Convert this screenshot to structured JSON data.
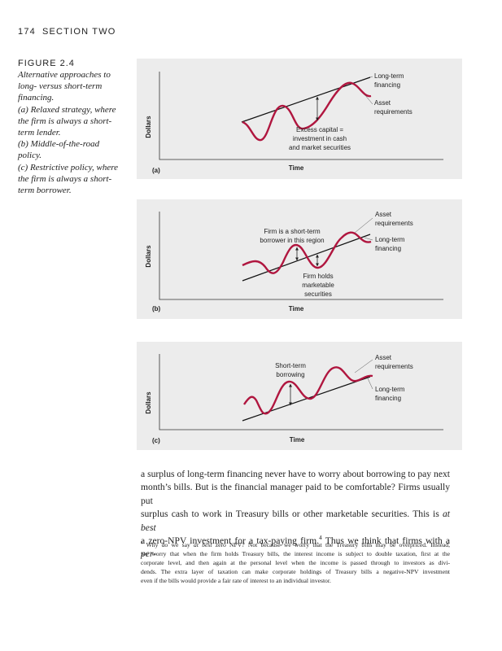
{
  "header": {
    "page_number": "174",
    "section": "SECTION TWO"
  },
  "figure": {
    "label": "FIGURE 2.4",
    "caption_lines": [
      "Alternative approaches to",
      "long- versus short-term",
      "financing.",
      "(a) Relaxed strategy, where",
      "the firm is always a short-",
      "term lender.",
      "(b) Middle-of-the-road",
      "policy.",
      "(c) Restrictive policy, where",
      "the firm is always a short-",
      "term borrower."
    ],
    "panels": [
      {
        "panel_label": "(a)",
        "y_axis_label": "Dollars",
        "x_axis_label": "Time",
        "long_term_label": [
          "Long-term",
          "financing"
        ],
        "asset_label": [
          "Asset",
          "requirements"
        ],
        "notes": [
          [
            "Excess capital =",
            "investment in cash",
            "and market securities"
          ]
        ]
      },
      {
        "panel_label": "(b)",
        "y_axis_label": "Dollars",
        "x_axis_label": "Time",
        "long_term_label": [
          "Long-term",
          "financing"
        ],
        "asset_label": [
          "Asset",
          "requirements"
        ],
        "notes": [
          [
            "Firm is a short-term",
            "borrower in this region"
          ],
          [
            "Firm holds",
            "marketable",
            "securities"
          ]
        ]
      },
      {
        "panel_label": "(c)",
        "y_axis_label": "Dollars",
        "x_axis_label": "Time",
        "long_term_label": [
          "Long-term",
          "financing"
        ],
        "asset_label": [
          "Asset",
          "requirements"
        ],
        "notes": [
          [
            "Short-term",
            "borrowing"
          ]
        ]
      }
    ]
  },
  "body": {
    "lines": [
      [
        "a surplus of long-term financing never have to worry about borrowing to pay next"
      ],
      [
        "month’s bills. But is the financial manager paid to be comfortable? Firms usually put"
      ],
      [
        "surplus cash to work in Treasury bills or other marketable securities. This is ",
        "at best"
      ],
      [
        "a zero-NPV investment for a tax-paying firm.",
        "4",
        " Thus we think that firms with a ",
        "per-"
      ]
    ]
  },
  "footnote": {
    "lines": [
      [
        "4",
        " Why do we say ",
        "at best",
        " zero NPV? Not because we worry that the Treasury bills may be overpriced. Instead,"
      ],
      [
        "we worry that when the firm holds Treasury bills, the interest income is subject to double taxation, first at the"
      ],
      [
        "corporate level, and then again at the personal level when the income is passed through to investors as divi-"
      ],
      [
        "dends. The extra layer of taxation can make corporate holdings of Treasury bills a negative-NPV investment"
      ],
      [
        "even if the bills would provide a fair rate of interest to an individual investor."
      ]
    ]
  }
}
